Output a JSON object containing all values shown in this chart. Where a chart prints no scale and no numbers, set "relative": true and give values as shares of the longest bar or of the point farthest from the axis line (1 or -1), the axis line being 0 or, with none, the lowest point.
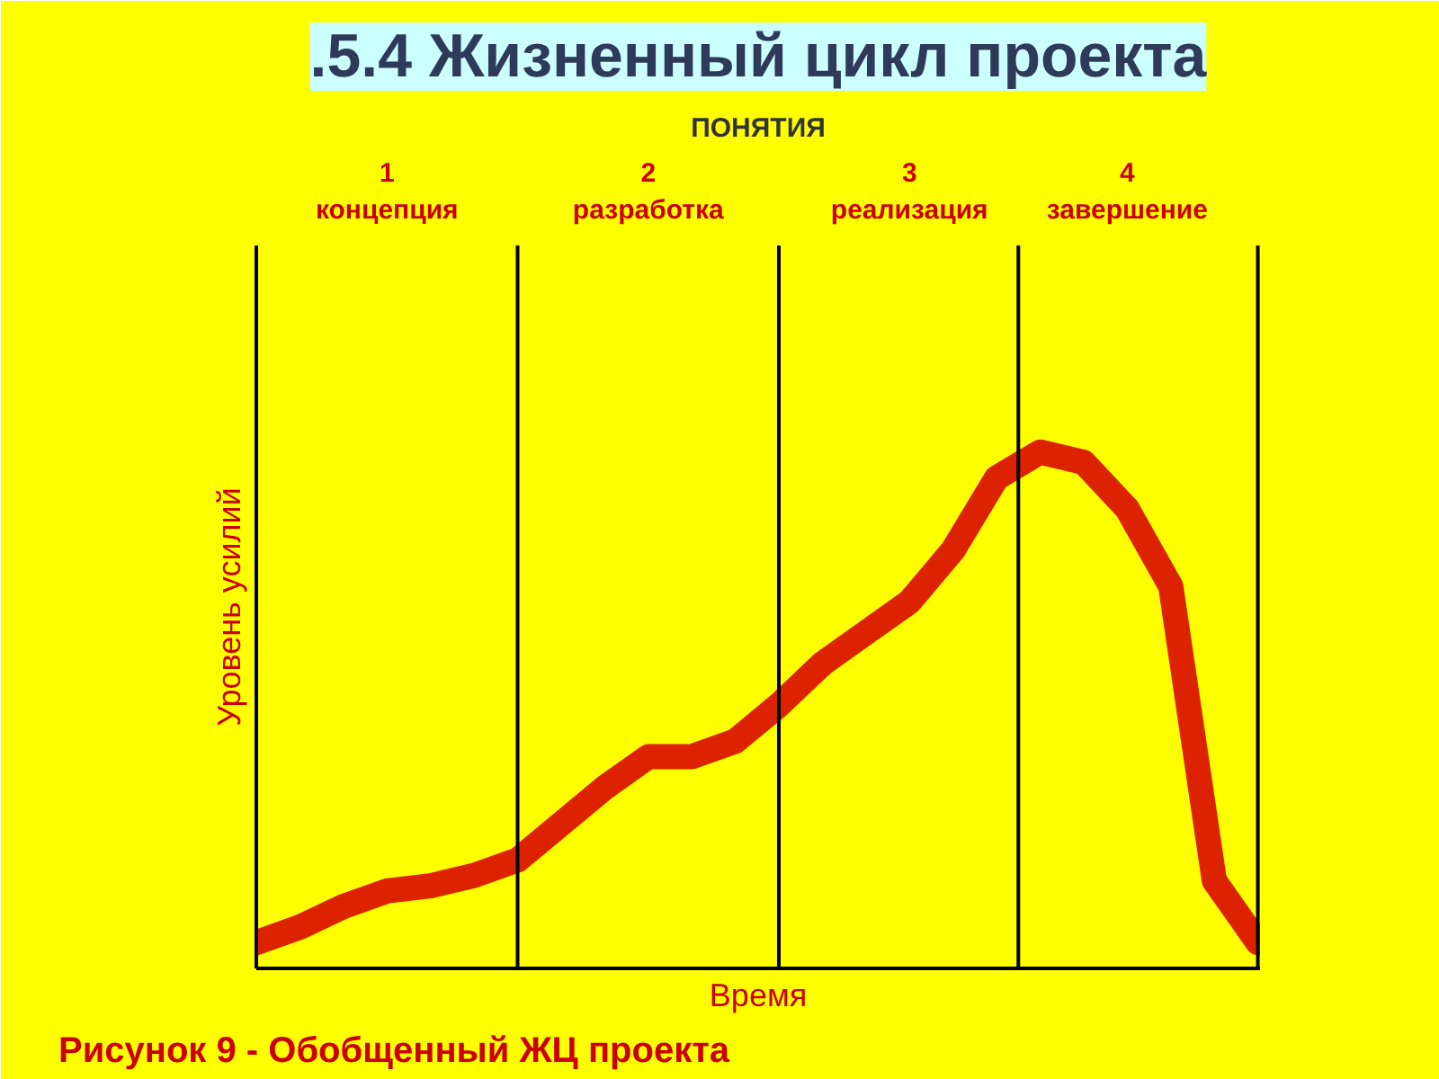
{
  "chart_data": {
    "type": "line",
    "title": ".5.4 Жизненный цикл проекта",
    "xlabel": "Время",
    "ylabel": "Уровень усилий",
    "x2label": "ПОНЯТИЯ",
    "relative": true,
    "categories": [
      null,
      null,
      null,
      "1\nконцепция",
      null,
      null,
      null,
      null,
      null,
      "2\nразработка",
      null,
      null,
      null,
      null,
      null,
      "3\nреализация",
      null,
      null,
      null,
      null,
      "4\nзавершение",
      null,
      null,
      null
    ],
    "series": [
      {
        "color": "#dd2200",
        "values": [
          0.05,
          0.08,
          0.12,
          0.15,
          0.16,
          0.18,
          0.21,
          0.28,
          0.35,
          0.41,
          0.41,
          0.44,
          0.51,
          0.59,
          0.65,
          0.71,
          0.81,
          0.95,
          1.0,
          0.98,
          0.89,
          0.74,
          0.17,
          0.05
        ]
      }
    ],
    "line_style": "solid",
    "annotations": [
      "Рисунок  9 - Обобщенный ЖЦ проекта"
    ]
  }
}
